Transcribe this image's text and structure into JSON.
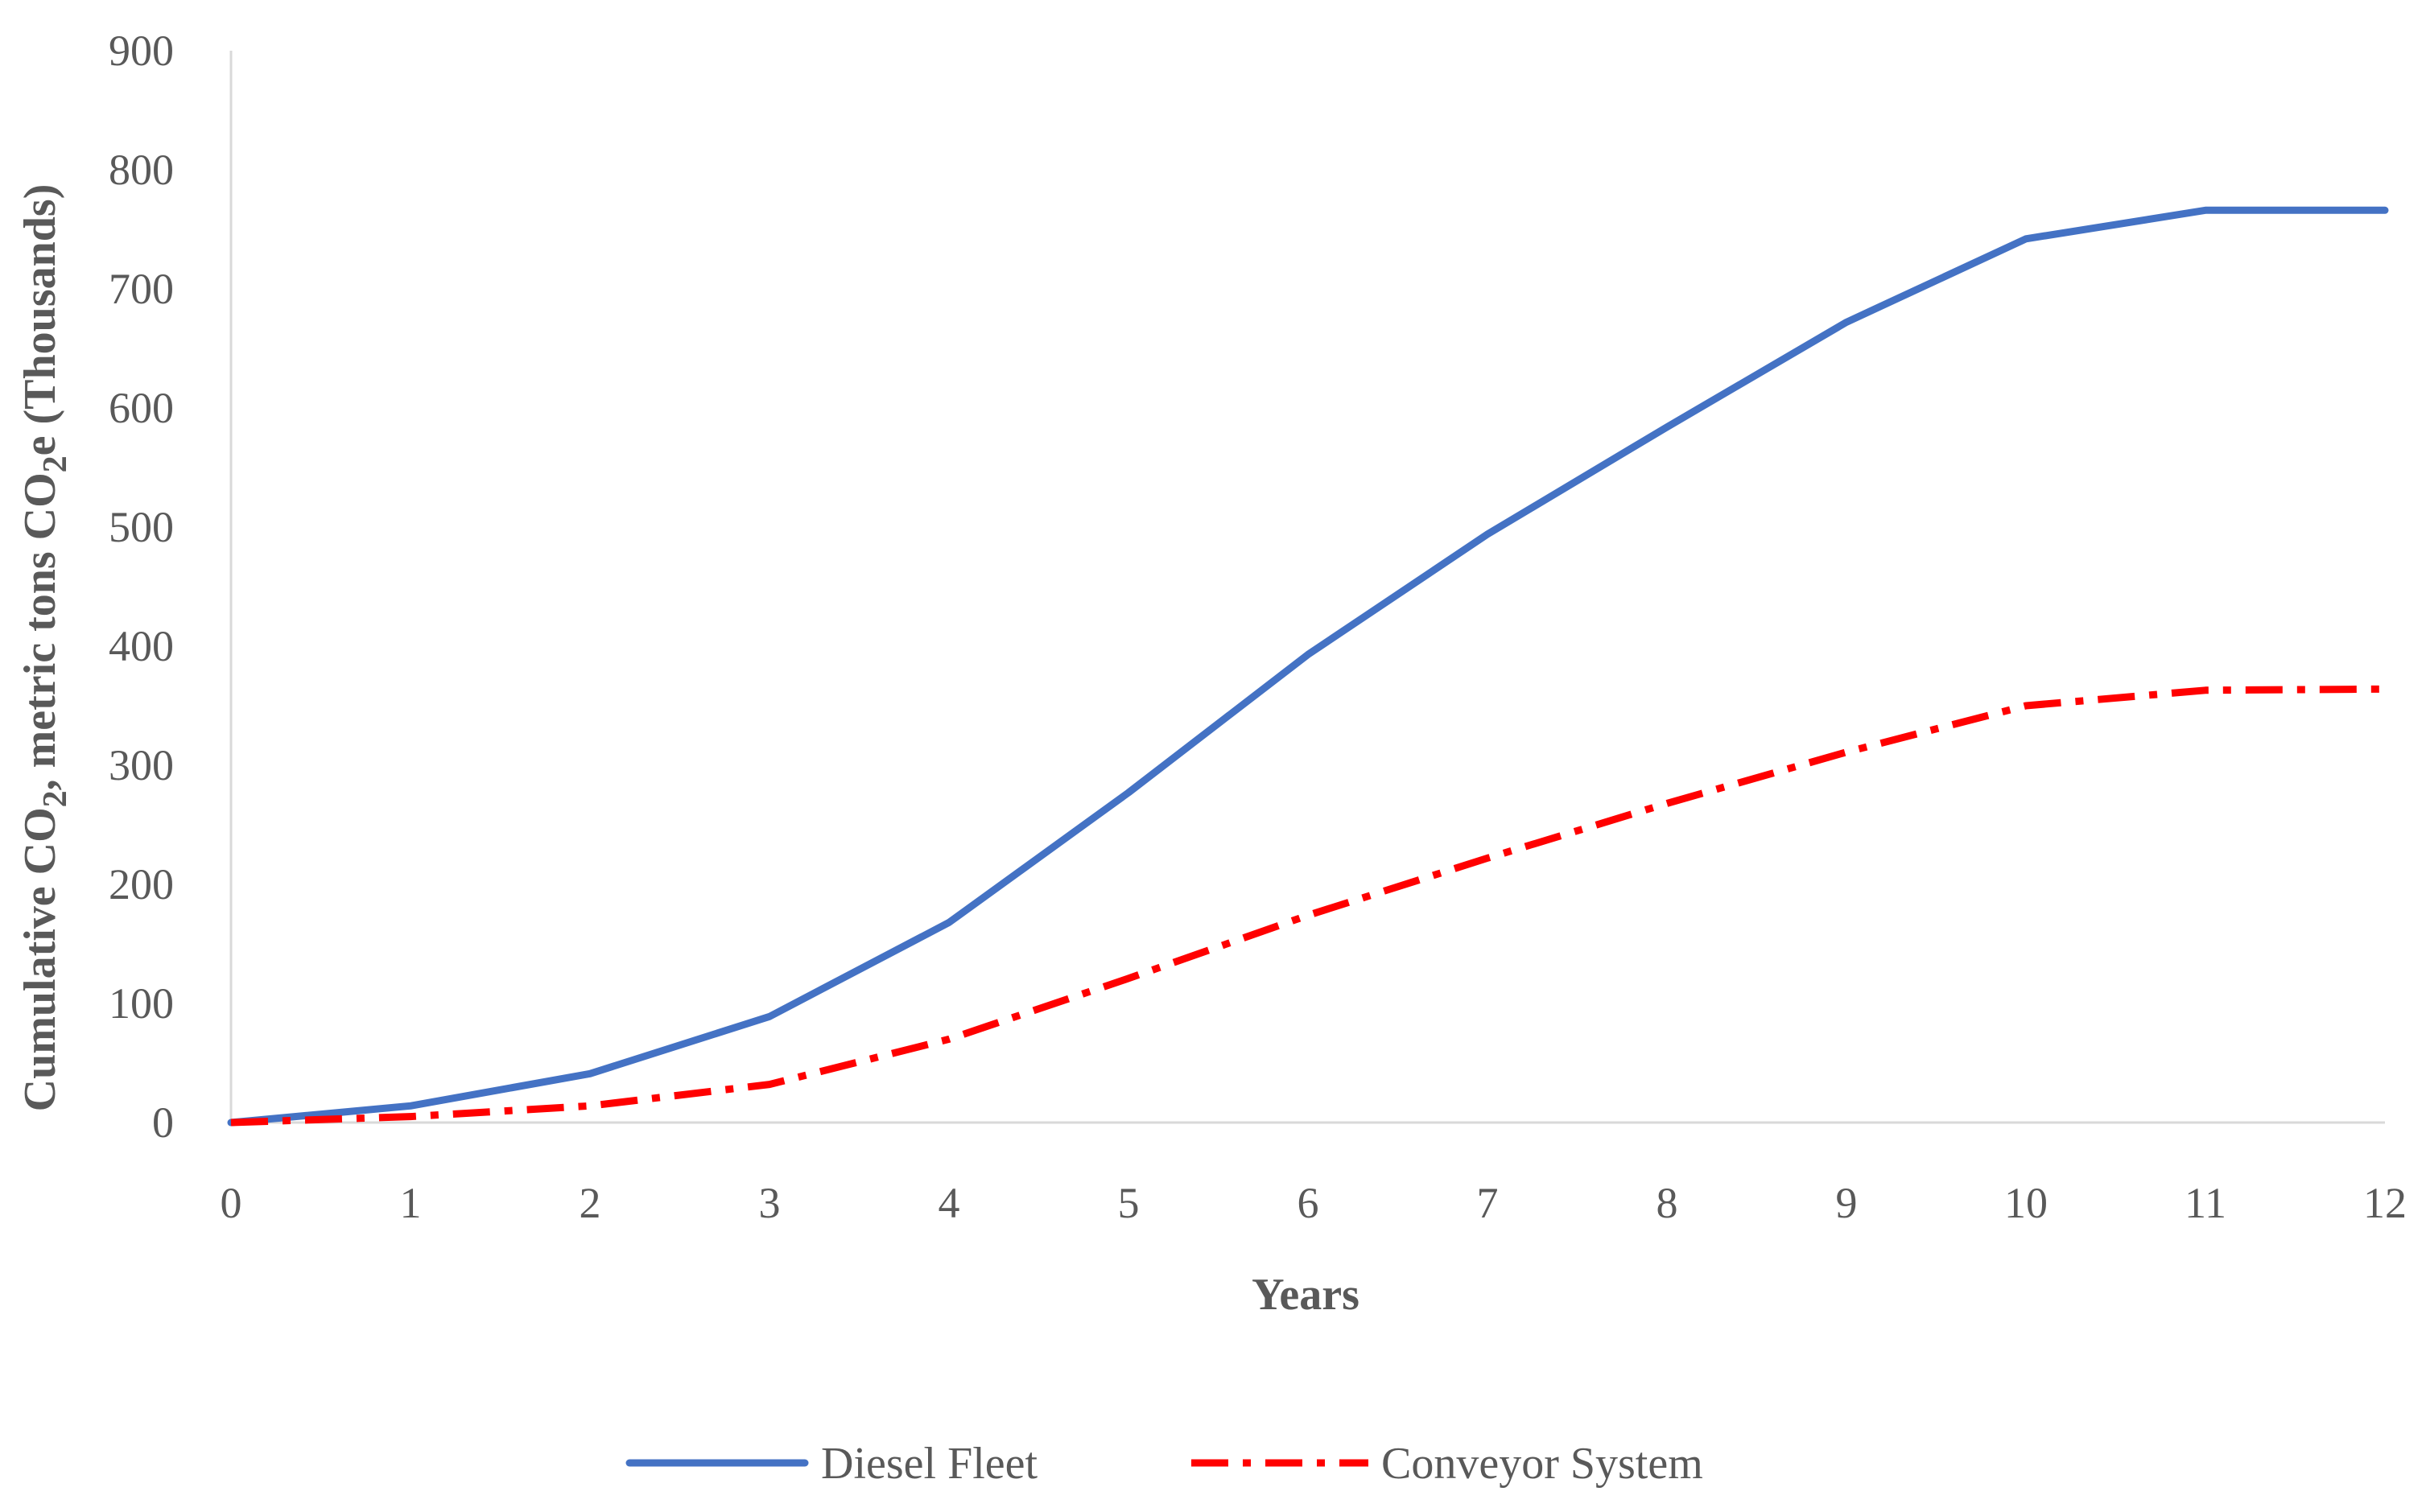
{
  "chart_data": {
    "type": "line",
    "xlabel": "Years",
    "ylabel": {
      "p1": "Cumulative CO",
      "sub1": "2",
      "p2": ", metric tons CO",
      "sub2": "2",
      "p3": "e (Thousands)"
    },
    "x": [
      0,
      1,
      2,
      3,
      4,
      5,
      6,
      7,
      8,
      9,
      10,
      11,
      12
    ],
    "xlim": [
      0,
      12
    ],
    "ylim": [
      0,
      900
    ],
    "y_ticks": [
      0,
      100,
      200,
      300,
      400,
      500,
      600,
      700,
      800,
      900
    ],
    "grid": false,
    "legend_position": "bottom",
    "series": [
      {
        "name": "Diesel Fleet",
        "color": "#4472c4",
        "style": "solid",
        "values": [
          0,
          14,
          41,
          89,
          168,
          277,
          393,
          494,
          584,
          672,
          742,
          766,
          766
        ]
      },
      {
        "name": "Conveyor System",
        "color": "#ff0000",
        "style": "dash-dot",
        "values": [
          0,
          5,
          14,
          32,
          70,
          121,
          174,
          222,
          268,
          311,
          350,
          363,
          364
        ]
      }
    ]
  }
}
